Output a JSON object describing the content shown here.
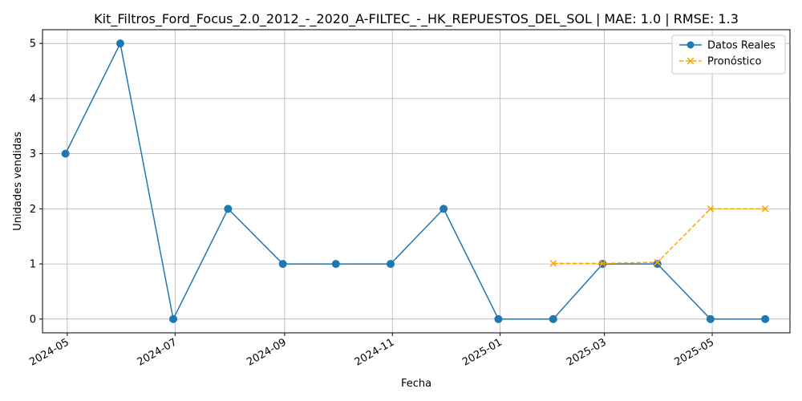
{
  "chart_data": {
    "type": "line",
    "title": "Kit_Filtros_Ford_Focus_2.0_2012_-_2020_A-FILTEC_-_HK_REPUESTOS_DEL_SOL | MAE: 1.0 | RMSE: 1.3",
    "xlabel": "Fecha",
    "ylabel": "Unidades vendidas",
    "x_type": "date",
    "xlim": [
      "2024-04-17",
      "2025-06-14"
    ],
    "ylim": [
      -0.25,
      5.25
    ],
    "x_ticks": [
      "2024-05",
      "2024-07",
      "2024-09",
      "2024-11",
      "2025-01",
      "2025-03",
      "2025-05"
    ],
    "y_ticks": [
      0,
      1,
      2,
      3,
      4,
      5
    ],
    "grid": true,
    "legend_position": "top-right",
    "series": [
      {
        "name": "Datos Reales",
        "color": "#1f77b4",
        "line_style": "solid",
        "marker": "circle",
        "x": [
          "2024-04-30",
          "2024-05-31",
          "2024-06-30",
          "2024-07-31",
          "2024-08-31",
          "2024-09-30",
          "2024-10-31",
          "2024-11-30",
          "2024-12-31",
          "2025-01-31",
          "2025-02-28",
          "2025-03-31",
          "2025-04-30",
          "2025-05-31"
        ],
        "values": [
          3,
          5,
          0,
          2,
          1,
          1,
          1,
          2,
          0,
          0,
          1,
          1,
          0,
          0
        ]
      },
      {
        "name": "Pronóstico",
        "color": "#ffa500",
        "line_style": "dashed",
        "marker": "x",
        "x": [
          "2025-01-31",
          "2025-02-28",
          "2025-03-31",
          "2025-04-30",
          "2025-05-31"
        ],
        "values": [
          1.01,
          1.01,
          1.03,
          2.0,
          2.0
        ]
      }
    ]
  }
}
